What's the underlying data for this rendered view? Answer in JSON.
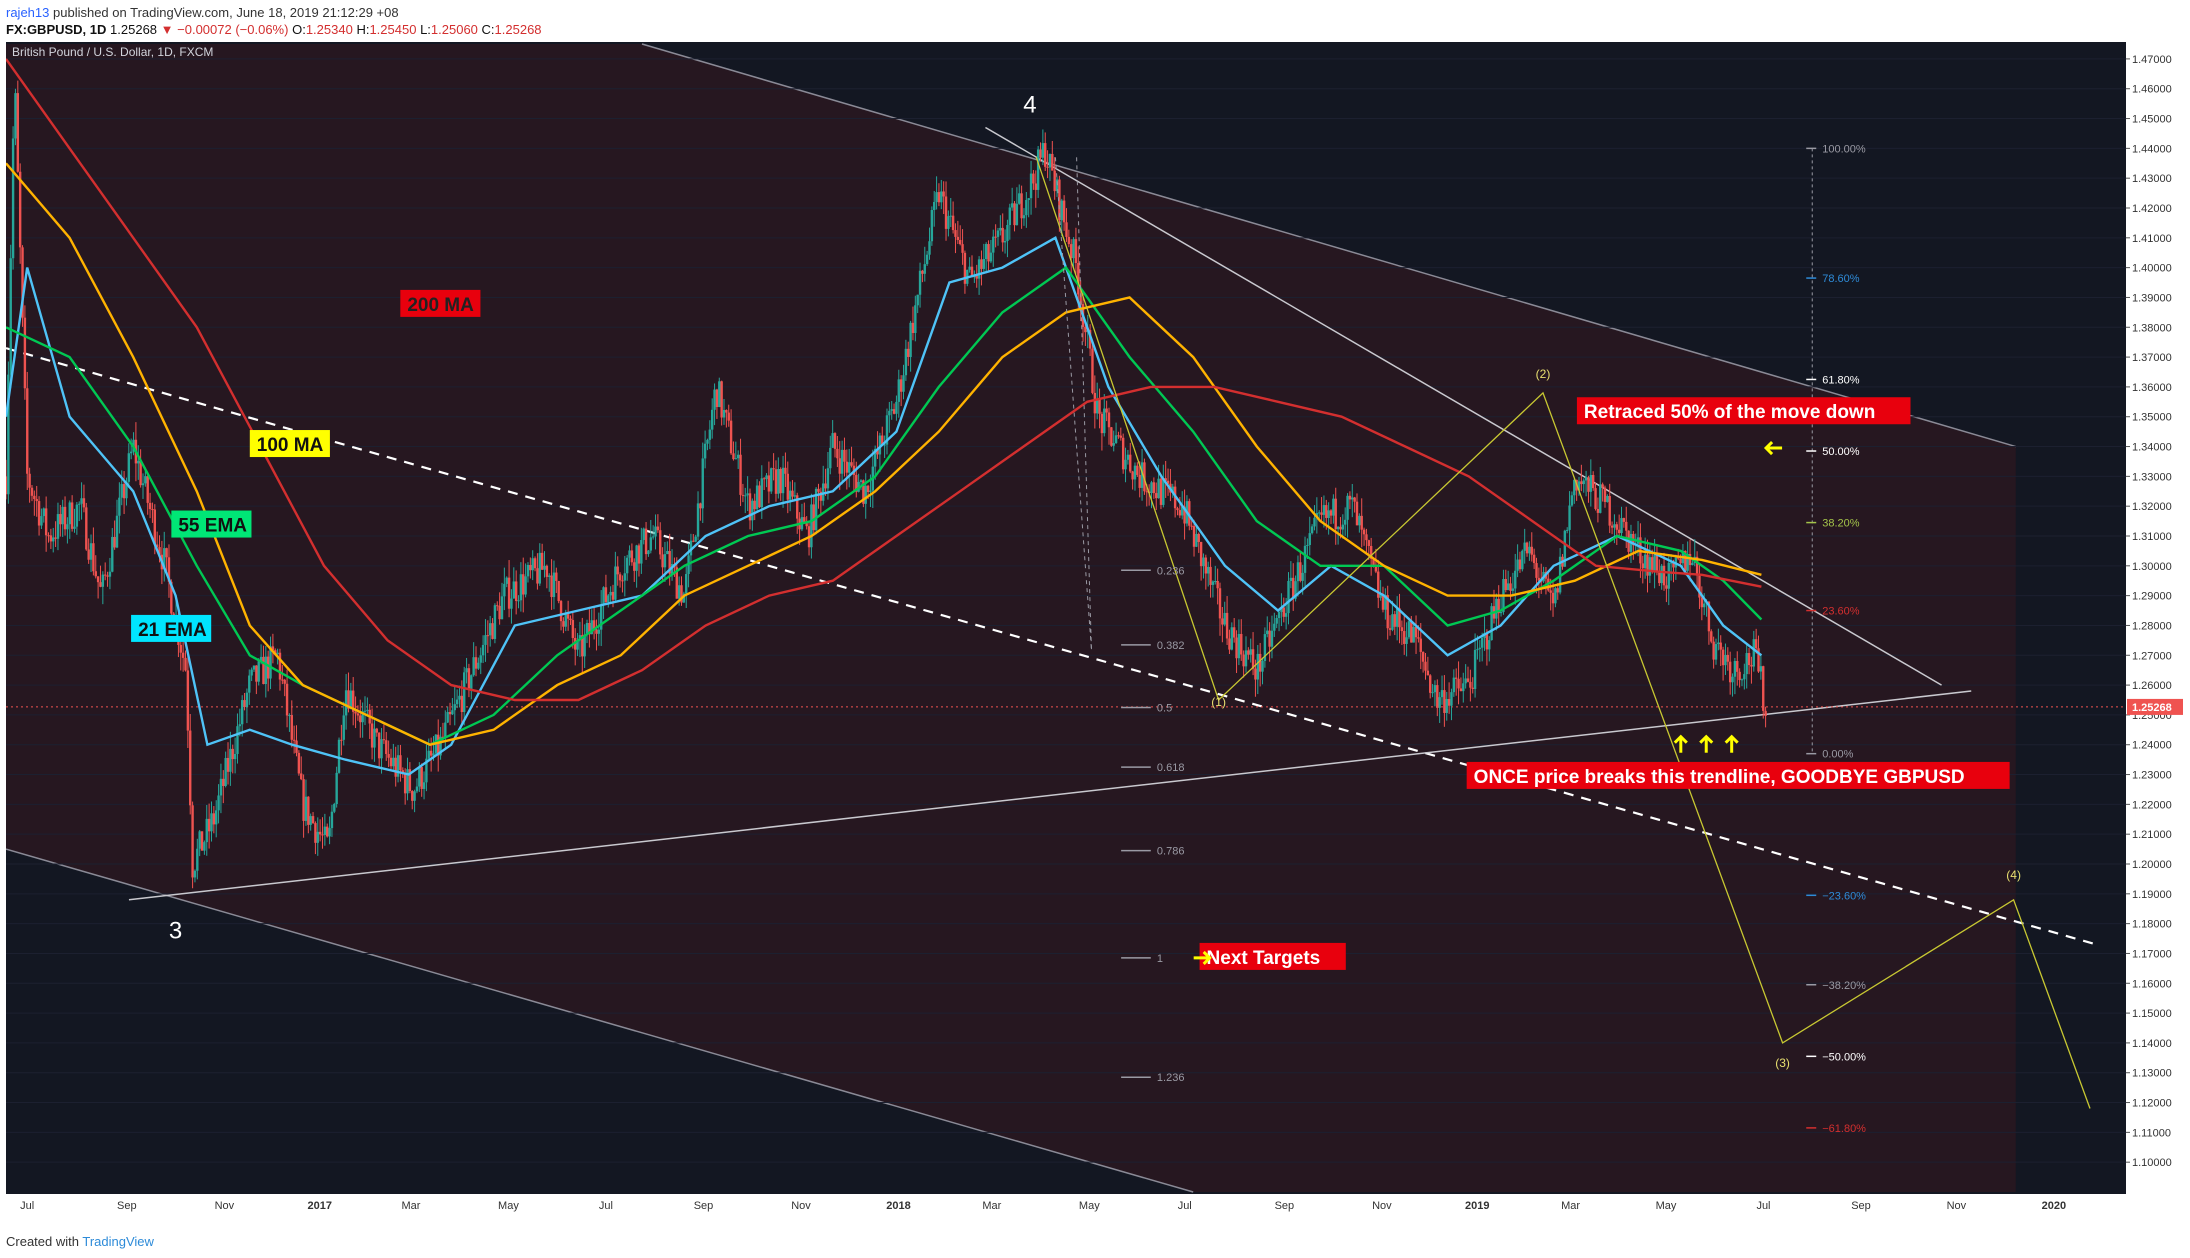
{
  "header": {
    "user": "rajeh13",
    "published": "published on TradingView.com, June 18, 2019 21:12:29 +08",
    "symbol": "FX:GBPUSD, 1D",
    "last": "1.25268",
    "change": "▼ −0.00072 (−0.06%)",
    "o_label": "O:",
    "o": "1.25340",
    "h_label": "H:",
    "h": "1.25450",
    "l_label": "L:",
    "l": "1.25060",
    "c_label": "C:",
    "c": "1.25268"
  },
  "footer": {
    "created": "Created with",
    "brand": "TradingView"
  },
  "colors": {
    "background": "#131722",
    "channel_fill": "#2a1720",
    "up": "#26a69a",
    "down": "#ef5350",
    "ema21": "#4fc3f7",
    "ema55": "#00c853",
    "ma100": "#ffb300",
    "ma200": "#d32f2f",
    "wave": "#c8c832",
    "accent_red": "#e8000d"
  },
  "chart_data": {
    "type": "candlestick",
    "title": "British Pound / U.S. Dollar, 1D, FXCM",
    "ylim": [
      1.09,
      1.475
    ],
    "y_ticks": [
      "1.47000",
      "1.46000",
      "1.45000",
      "1.44000",
      "1.43000",
      "1.42000",
      "1.41000",
      "1.40000",
      "1.39000",
      "1.38000",
      "1.37000",
      "1.36000",
      "1.35000",
      "1.34000",
      "1.33000",
      "1.32000",
      "1.31000",
      "1.30000",
      "1.29000",
      "1.28000",
      "1.27000",
      "1.26000",
      "1.25000",
      "1.24000",
      "1.23000",
      "1.22000",
      "1.21000",
      "1.20000",
      "1.19000",
      "1.18000",
      "1.17000",
      "1.16000",
      "1.15000",
      "1.14000",
      "1.13000",
      "1.12000",
      "1.11000",
      "1.10000"
    ],
    "x_ticks": [
      {
        "label": "Jul",
        "t": 0.01,
        "bold": false
      },
      {
        "label": "Sep",
        "t": 0.057,
        "bold": false
      },
      {
        "label": "Nov",
        "t": 0.103,
        "bold": false
      },
      {
        "label": "2017",
        "t": 0.148,
        "bold": true
      },
      {
        "label": "Mar",
        "t": 0.191,
        "bold": false
      },
      {
        "label": "May",
        "t": 0.237,
        "bold": false
      },
      {
        "label": "Jul",
        "t": 0.283,
        "bold": false
      },
      {
        "label": "Sep",
        "t": 0.329,
        "bold": false
      },
      {
        "label": "Nov",
        "t": 0.375,
        "bold": false
      },
      {
        "label": "2018",
        "t": 0.421,
        "bold": true
      },
      {
        "label": "Mar",
        "t": 0.465,
        "bold": false
      },
      {
        "label": "May",
        "t": 0.511,
        "bold": false
      },
      {
        "label": "Jul",
        "t": 0.556,
        "bold": false
      },
      {
        "label": "Sep",
        "t": 0.603,
        "bold": false
      },
      {
        "label": "Nov",
        "t": 0.649,
        "bold": false
      },
      {
        "label": "2019",
        "t": 0.694,
        "bold": true
      },
      {
        "label": "Mar",
        "t": 0.738,
        "bold": false
      },
      {
        "label": "May",
        "t": 0.783,
        "bold": false
      },
      {
        "label": "Jul",
        "t": 0.829,
        "bold": false
      },
      {
        "label": "Sep",
        "t": 0.875,
        "bold": false
      },
      {
        "label": "Nov",
        "t": 0.92,
        "bold": false
      },
      {
        "label": "2020",
        "t": 0.966,
        "bold": true
      }
    ],
    "price_anchors": [
      [
        0.0,
        1.33
      ],
      [
        0.004,
        1.465
      ],
      [
        0.01,
        1.33
      ],
      [
        0.02,
        1.31
      ],
      [
        0.035,
        1.32
      ],
      [
        0.045,
        1.29
      ],
      [
        0.06,
        1.34
      ],
      [
        0.075,
        1.3
      ],
      [
        0.085,
        1.265
      ],
      [
        0.088,
        1.2
      ],
      [
        0.098,
        1.215
      ],
      [
        0.115,
        1.26
      ],
      [
        0.128,
        1.27
      ],
      [
        0.14,
        1.22
      ],
      [
        0.152,
        1.205
      ],
      [
        0.16,
        1.26
      ],
      [
        0.175,
        1.24
      ],
      [
        0.192,
        1.225
      ],
      [
        0.205,
        1.24
      ],
      [
        0.22,
        1.265
      ],
      [
        0.235,
        1.29
      ],
      [
        0.255,
        1.3
      ],
      [
        0.27,
        1.27
      ],
      [
        0.29,
        1.3
      ],
      [
        0.305,
        1.31
      ],
      [
        0.32,
        1.29
      ],
      [
        0.335,
        1.36
      ],
      [
        0.35,
        1.32
      ],
      [
        0.365,
        1.33
      ],
      [
        0.378,
        1.31
      ],
      [
        0.39,
        1.34
      ],
      [
        0.405,
        1.325
      ],
      [
        0.42,
        1.355
      ],
      [
        0.44,
        1.425
      ],
      [
        0.455,
        1.395
      ],
      [
        0.47,
        1.41
      ],
      [
        0.485,
        1.43
      ],
      [
        0.49,
        1.44
      ],
      [
        0.505,
        1.4
      ],
      [
        0.515,
        1.35
      ],
      [
        0.535,
        1.33
      ],
      [
        0.555,
        1.32
      ],
      [
        0.575,
        1.28
      ],
      [
        0.59,
        1.265
      ],
      [
        0.605,
        1.29
      ],
      [
        0.62,
        1.315
      ],
      [
        0.635,
        1.32
      ],
      [
        0.65,
        1.285
      ],
      [
        0.665,
        1.275
      ],
      [
        0.675,
        1.255
      ],
      [
        0.69,
        1.26
      ],
      [
        0.705,
        1.29
      ],
      [
        0.718,
        1.305
      ],
      [
        0.73,
        1.285
      ],
      [
        0.74,
        1.33
      ],
      [
        0.755,
        1.32
      ],
      [
        0.77,
        1.305
      ],
      [
        0.785,
        1.295
      ],
      [
        0.795,
        1.305
      ],
      [
        0.805,
        1.275
      ],
      [
        0.815,
        1.265
      ],
      [
        0.825,
        1.27
      ],
      [
        0.83,
        1.2527
      ]
    ],
    "ma_lines": {
      "ema21": [
        [
          0.0,
          1.35
        ],
        [
          0.01,
          1.4
        ],
        [
          0.03,
          1.35
        ],
        [
          0.06,
          1.325
        ],
        [
          0.08,
          1.29
        ],
        [
          0.095,
          1.24
        ],
        [
          0.115,
          1.245
        ],
        [
          0.135,
          1.24
        ],
        [
          0.16,
          1.235
        ],
        [
          0.19,
          1.23
        ],
        [
          0.21,
          1.24
        ],
        [
          0.24,
          1.28
        ],
        [
          0.27,
          1.285
        ],
        [
          0.3,
          1.29
        ],
        [
          0.33,
          1.31
        ],
        [
          0.36,
          1.32
        ],
        [
          0.39,
          1.325
        ],
        [
          0.42,
          1.345
        ],
        [
          0.445,
          1.395
        ],
        [
          0.47,
          1.4
        ],
        [
          0.495,
          1.41
        ],
        [
          0.52,
          1.36
        ],
        [
          0.545,
          1.33
        ],
        [
          0.575,
          1.3
        ],
        [
          0.6,
          1.285
        ],
        [
          0.625,
          1.3
        ],
        [
          0.65,
          1.29
        ],
        [
          0.68,
          1.27
        ],
        [
          0.705,
          1.28
        ],
        [
          0.73,
          1.3
        ],
        [
          0.76,
          1.31
        ],
        [
          0.79,
          1.3
        ],
        [
          0.81,
          1.28
        ],
        [
          0.828,
          1.27
        ]
      ],
      "ema55": [
        [
          0.0,
          1.38
        ],
        [
          0.03,
          1.37
        ],
        [
          0.06,
          1.34
        ],
        [
          0.09,
          1.3
        ],
        [
          0.115,
          1.27
        ],
        [
          0.14,
          1.26
        ],
        [
          0.17,
          1.25
        ],
        [
          0.2,
          1.24
        ],
        [
          0.23,
          1.25
        ],
        [
          0.26,
          1.27
        ],
        [
          0.29,
          1.285
        ],
        [
          0.32,
          1.3
        ],
        [
          0.35,
          1.31
        ],
        [
          0.38,
          1.315
        ],
        [
          0.41,
          1.33
        ],
        [
          0.44,
          1.36
        ],
        [
          0.47,
          1.385
        ],
        [
          0.5,
          1.4
        ],
        [
          0.53,
          1.37
        ],
        [
          0.56,
          1.345
        ],
        [
          0.59,
          1.315
        ],
        [
          0.62,
          1.3
        ],
        [
          0.65,
          1.3
        ],
        [
          0.68,
          1.28
        ],
        [
          0.705,
          1.285
        ],
        [
          0.73,
          1.295
        ],
        [
          0.76,
          1.31
        ],
        [
          0.79,
          1.305
        ],
        [
          0.81,
          1.295
        ],
        [
          0.828,
          1.282
        ]
      ],
      "ma100": [
        [
          0.0,
          1.435
        ],
        [
          0.03,
          1.41
        ],
        [
          0.06,
          1.37
        ],
        [
          0.09,
          1.325
        ],
        [
          0.115,
          1.28
        ],
        [
          0.14,
          1.26
        ],
        [
          0.17,
          1.25
        ],
        [
          0.2,
          1.24
        ],
        [
          0.23,
          1.245
        ],
        [
          0.26,
          1.26
        ],
        [
          0.29,
          1.27
        ],
        [
          0.32,
          1.29
        ],
        [
          0.35,
          1.3
        ],
        [
          0.38,
          1.31
        ],
        [
          0.41,
          1.325
        ],
        [
          0.44,
          1.345
        ],
        [
          0.47,
          1.37
        ],
        [
          0.5,
          1.385
        ],
        [
          0.53,
          1.39
        ],
        [
          0.56,
          1.37
        ],
        [
          0.59,
          1.34
        ],
        [
          0.62,
          1.315
        ],
        [
          0.65,
          1.3
        ],
        [
          0.68,
          1.29
        ],
        [
          0.71,
          1.29
        ],
        [
          0.74,
          1.295
        ],
        [
          0.77,
          1.305
        ],
        [
          0.8,
          1.302
        ],
        [
          0.828,
          1.297
        ]
      ],
      "ma200": [
        [
          0.0,
          1.47
        ],
        [
          0.03,
          1.44
        ],
        [
          0.06,
          1.41
        ],
        [
          0.09,
          1.38
        ],
        [
          0.12,
          1.34
        ],
        [
          0.15,
          1.3
        ],
        [
          0.18,
          1.275
        ],
        [
          0.21,
          1.26
        ],
        [
          0.24,
          1.255
        ],
        [
          0.27,
          1.255
        ],
        [
          0.3,
          1.265
        ],
        [
          0.33,
          1.28
        ],
        [
          0.36,
          1.29
        ],
        [
          0.39,
          1.295
        ],
        [
          0.42,
          1.31
        ],
        [
          0.45,
          1.325
        ],
        [
          0.48,
          1.34
        ],
        [
          0.51,
          1.355
        ],
        [
          0.54,
          1.36
        ],
        [
          0.57,
          1.36
        ],
        [
          0.6,
          1.355
        ],
        [
          0.63,
          1.35
        ],
        [
          0.66,
          1.34
        ],
        [
          0.69,
          1.33
        ],
        [
          0.72,
          1.315
        ],
        [
          0.75,
          1.3
        ],
        [
          0.78,
          1.298
        ],
        [
          0.8,
          1.297
        ],
        [
          0.828,
          1.293
        ]
      ]
    },
    "current_price": {
      "value": 1.25268,
      "label": "1.25268"
    },
    "fib_left": [
      {
        "level": "0.236",
        "price": 1.2985
      },
      {
        "level": "0.382",
        "price": 1.2735
      },
      {
        "level": "0.5",
        "price": 1.2525
      },
      {
        "level": "0.618",
        "price": 1.2325
      },
      {
        "level": "0.786",
        "price": 1.2045
      },
      {
        "level": "1",
        "price": 1.1685
      },
      {
        "level": "1.236",
        "price": 1.1285
      }
    ],
    "fib_right": [
      {
        "level": "100.00%",
        "price": 1.44
      },
      {
        "level": "78.60%",
        "price": 1.3965
      },
      {
        "level": "61.80%",
        "price": 1.3625
      },
      {
        "level": "50.00%",
        "price": 1.3385
      },
      {
        "level": "38.20%",
        "price": 1.3145
      },
      {
        "level": "23.60%",
        "price": 1.285
      },
      {
        "level": "0.00%",
        "price": 1.237
      },
      {
        "level": "−23.60%",
        "price": 1.1895
      },
      {
        "level": "−38.20%",
        "price": 1.1595
      },
      {
        "level": "−50.00%",
        "price": 1.1355
      },
      {
        "level": "−61.80%",
        "price": 1.1115
      }
    ],
    "wave_labels": [
      {
        "label": "4",
        "t": 0.483,
        "price": 1.452,
        "big": true
      },
      {
        "label": "3",
        "t": 0.08,
        "price": 1.175,
        "big": true
      },
      {
        "label": "(1)",
        "t": 0.572,
        "price": 1.253,
        "big": false
      },
      {
        "label": "(2)",
        "t": 0.725,
        "price": 1.363,
        "big": false
      },
      {
        "label": "(3)",
        "t": 0.838,
        "price": 1.132,
        "big": false
      },
      {
        "label": "(4)",
        "t": 0.947,
        "price": 1.195,
        "big": false
      }
    ],
    "annotations": {
      "ma200": "200 MA",
      "ma100": "100 MA",
      "ema55": "55 EMA",
      "ema21": "21 EMA",
      "retraced": "Retraced 50% of the move down",
      "once": "ONCE price breaks this trendline, GOODBYE GBPUSD",
      "next": "Next Targets"
    }
  }
}
